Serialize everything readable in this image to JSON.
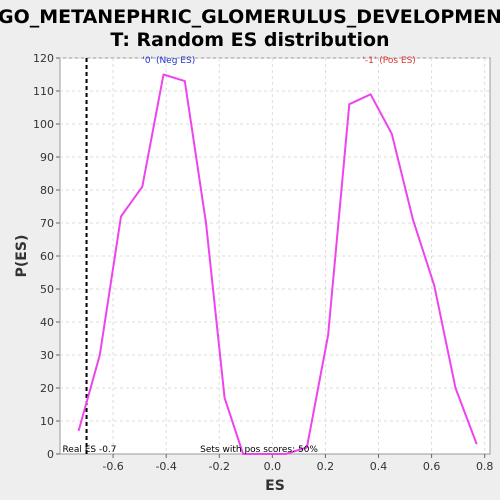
{
  "chart_data": {
    "type": "line",
    "title_line1": "GO_METANEPHRIC_GLOMERULUS_DEVELOPMEN",
    "title_line2": "T: Random ES distribution",
    "xlabel": "ES",
    "ylabel": "P(ES)",
    "xlim": [
      -0.8,
      0.82
    ],
    "ylim": [
      0,
      120
    ],
    "x_ticks": [
      -0.6,
      -0.4,
      -0.2,
      0.0,
      0.2,
      0.4,
      0.6,
      0.8
    ],
    "x_tick_labels": [
      "-0.6",
      "-0.4",
      "-0.2",
      "0.0",
      "0.2",
      "0.4",
      "0.6",
      "0.8"
    ],
    "y_ticks": [
      0,
      10,
      20,
      30,
      40,
      50,
      60,
      70,
      80,
      90,
      100,
      110,
      120
    ],
    "y_tick_labels": [
      "0",
      "10",
      "20",
      "30",
      "40",
      "50",
      "60",
      "70",
      "80",
      "90",
      "100",
      "110",
      "120"
    ],
    "grid": true,
    "series": [
      {
        "color": "#ee44ee",
        "x": [
          -0.73,
          -0.65,
          -0.57,
          -0.49,
          -0.41,
          -0.33,
          -0.25,
          -0.18,
          -0.11,
          -0.03,
          0.05,
          0.13,
          0.21,
          0.29,
          0.37,
          0.45,
          0.53,
          0.61,
          0.69,
          0.77
        ],
        "y": [
          7,
          30,
          72,
          81,
          115,
          113,
          70,
          17,
          0,
          0,
          0,
          2,
          36,
          106,
          109,
          97,
          71,
          51,
          20,
          3
        ]
      }
    ],
    "actual_es": {
      "x": -0.7,
      "color": "#000000",
      "label": "Real ES -0.7"
    },
    "annotations": [
      {
        "text": "'0' (Neg ES)",
        "color": "#2233cc",
        "x": -0.39,
        "y": 118.5
      },
      {
        "text": "'-1' (Pos ES)",
        "color": "#dd3333",
        "x": 0.44,
        "y": 118.5
      }
    ],
    "footer_text": "Sets with pos scores: 50%"
  }
}
